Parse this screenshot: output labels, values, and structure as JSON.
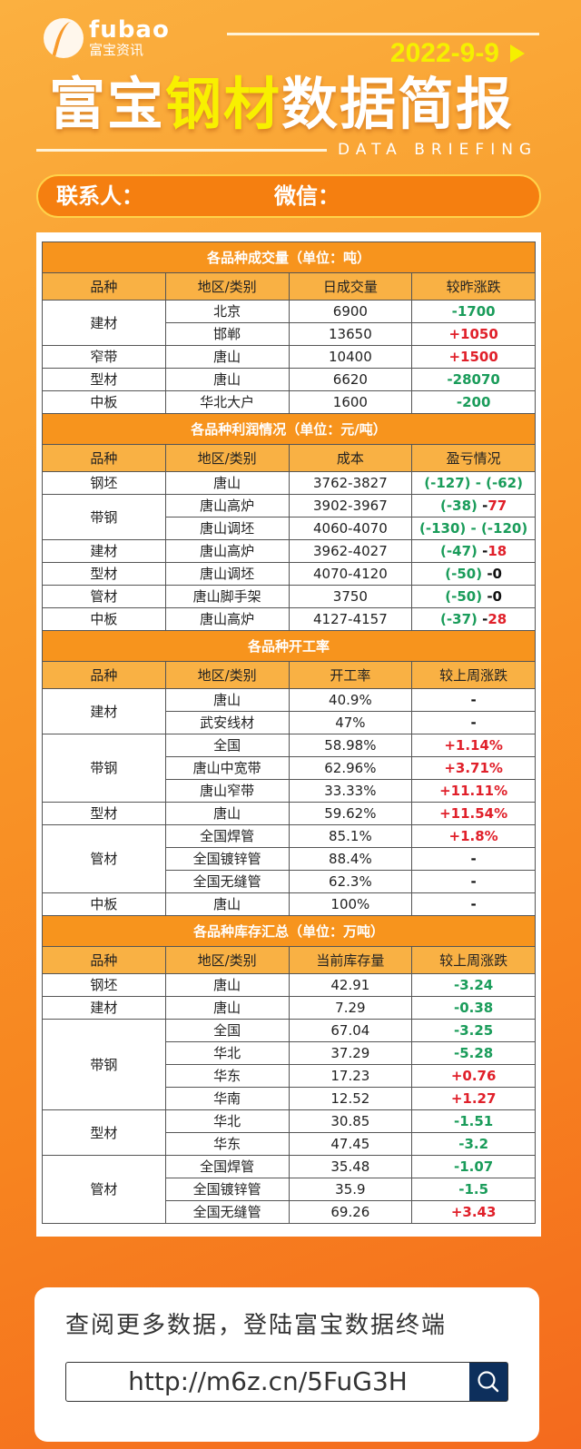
{
  "header": {
    "logo_en": "fubao",
    "logo_cn": "富宝资讯",
    "date": "2022-9-9",
    "title_a": "富宝",
    "title_hl": "钢材",
    "title_b": "数据简报",
    "subtitle": "DATA BRIEFING",
    "contact_label": "联系人：",
    "wechat_label": "微信："
  },
  "colors": {
    "green": "#1a9c5a",
    "red": "#e0202a",
    "title_row": "#f7941d",
    "header_row": "#f9b144"
  },
  "sections": [
    {
      "title": "各品种成交量（单位：吨）",
      "headers": [
        "品种",
        "地区/类别",
        "日成交量",
        "较昨涨跌"
      ],
      "groups": [
        {
          "name": "建材",
          "rows": [
            {
              "region": "北京",
              "value": "6900",
              "change": [
                {
                  "t": "-1700",
                  "c": "green"
                }
              ]
            },
            {
              "region": "邯郸",
              "value": "13650",
              "change": [
                {
                  "t": "+1050",
                  "c": "red"
                }
              ]
            }
          ]
        },
        {
          "name": "窄带",
          "rows": [
            {
              "region": "唐山",
              "value": "10400",
              "change": [
                {
                  "t": "+1500",
                  "c": "red"
                }
              ]
            }
          ]
        },
        {
          "name": "型材",
          "rows": [
            {
              "region": "唐山",
              "value": "6620",
              "change": [
                {
                  "t": "-28070",
                  "c": "green"
                }
              ]
            }
          ]
        },
        {
          "name": "中板",
          "rows": [
            {
              "region": "华北大户",
              "value": "1600",
              "change": [
                {
                  "t": "-200",
                  "c": "green"
                }
              ]
            }
          ]
        }
      ]
    },
    {
      "title": "各品种利润情况（单位：元/吨）",
      "headers": [
        "品种",
        "地区/类别",
        "成本",
        "盈亏情况"
      ],
      "groups": [
        {
          "name": "钢坯",
          "rows": [
            {
              "region": "唐山",
              "value": "3762-3827",
              "change": [
                {
                  "t": "(-127) - (-62)",
                  "c": "green"
                }
              ]
            }
          ]
        },
        {
          "name": "带钢",
          "rows": [
            {
              "region": "唐山高炉",
              "value": "3902-3967",
              "change": [
                {
                  "t": "(-38) ",
                  "c": "green"
                },
                {
                  "t": "-",
                  "c": "black"
                },
                {
                  "t": "77",
                  "c": "red"
                }
              ]
            },
            {
              "region": "唐山调坯",
              "value": "4060-4070",
              "change": [
                {
                  "t": "(-130) - (-120)",
                  "c": "green"
                }
              ]
            }
          ]
        },
        {
          "name": "建材",
          "rows": [
            {
              "region": "唐山高炉",
              "value": "3962-4027",
              "change": [
                {
                  "t": "(-47) ",
                  "c": "green"
                },
                {
                  "t": "-",
                  "c": "black"
                },
                {
                  "t": "18",
                  "c": "red"
                }
              ]
            }
          ]
        },
        {
          "name": "型材",
          "rows": [
            {
              "region": "唐山调坯",
              "value": "4070-4120",
              "change": [
                {
                  "t": "(-50) ",
                  "c": "green"
                },
                {
                  "t": "-0",
                  "c": "black"
                }
              ]
            }
          ]
        },
        {
          "name": "管材",
          "rows": [
            {
              "region": "唐山脚手架",
              "value": "3750",
              "change": [
                {
                  "t": "(-50) ",
                  "c": "green"
                },
                {
                  "t": "-0",
                  "c": "black"
                }
              ]
            }
          ]
        },
        {
          "name": "中板",
          "rows": [
            {
              "region": "唐山高炉",
              "value": "4127-4157",
              "change": [
                {
                  "t": "(-37) ",
                  "c": "green"
                },
                {
                  "t": "-",
                  "c": "black"
                },
                {
                  "t": "28",
                  "c": "red"
                }
              ]
            }
          ]
        }
      ]
    },
    {
      "title": "各品种开工率",
      "headers": [
        "品种",
        "地区/类别",
        "开工率",
        "较上周涨跌"
      ],
      "groups": [
        {
          "name": "建材",
          "rows": [
            {
              "region": "唐山",
              "value": "40.9%",
              "change": [
                {
                  "t": "-",
                  "c": "black"
                }
              ]
            },
            {
              "region": "武安线材",
              "value": "47%",
              "change": [
                {
                  "t": "-",
                  "c": "black"
                }
              ]
            }
          ]
        },
        {
          "name": "带钢",
          "rows": [
            {
              "region": "全国",
              "value": "58.98%",
              "change": [
                {
                  "t": "+1.14%",
                  "c": "red"
                }
              ]
            },
            {
              "region": "唐山中宽带",
              "value": "62.96%",
              "change": [
                {
                  "t": "+3.71%",
                  "c": "red"
                }
              ]
            },
            {
              "region": "唐山窄带",
              "value": "33.33%",
              "change": [
                {
                  "t": "+11.11%",
                  "c": "red"
                }
              ]
            }
          ]
        },
        {
          "name": "型材",
          "rows": [
            {
              "region": "唐山",
              "value": "59.62%",
              "change": [
                {
                  "t": "+11.54%",
                  "c": "red"
                }
              ]
            }
          ]
        },
        {
          "name": "管材",
          "rows": [
            {
              "region": "全国焊管",
              "value": "85.1%",
              "change": [
                {
                  "t": "+1.8%",
                  "c": "red"
                }
              ]
            },
            {
              "region": "全国镀锌管",
              "value": "88.4%",
              "change": [
                {
                  "t": "-",
                  "c": "black"
                }
              ]
            },
            {
              "region": "全国无缝管",
              "value": "62.3%",
              "change": [
                {
                  "t": "-",
                  "c": "black"
                }
              ]
            }
          ]
        },
        {
          "name": "中板",
          "rows": [
            {
              "region": "唐山",
              "value": "100%",
              "change": [
                {
                  "t": "-",
                  "c": "black"
                }
              ]
            }
          ]
        }
      ]
    },
    {
      "title": "各品种库存汇总（单位：万吨）",
      "headers": [
        "品种",
        "地区/类别",
        "当前库存量",
        "较上周涨跌"
      ],
      "groups": [
        {
          "name": "钢坯",
          "rows": [
            {
              "region": "唐山",
              "value": "42.91",
              "change": [
                {
                  "t": "-3.24",
                  "c": "green"
                }
              ]
            }
          ]
        },
        {
          "name": "建材",
          "rows": [
            {
              "region": "唐山",
              "value": "7.29",
              "change": [
                {
                  "t": "-0.38",
                  "c": "green"
                }
              ]
            }
          ]
        },
        {
          "name": "带钢",
          "rows": [
            {
              "region": "全国",
              "value": "67.04",
              "change": [
                {
                  "t": "-3.25",
                  "c": "green"
                }
              ]
            },
            {
              "region": "华北",
              "value": "37.29",
              "change": [
                {
                  "t": "-5.28",
                  "c": "green"
                }
              ]
            },
            {
              "region": "华东",
              "value": "17.23",
              "change": [
                {
                  "t": "+0.76",
                  "c": "red"
                }
              ]
            },
            {
              "region": "华南",
              "value": "12.52",
              "change": [
                {
                  "t": "+1.27",
                  "c": "red"
                }
              ]
            }
          ]
        },
        {
          "name": "型材",
          "rows": [
            {
              "region": "华北",
              "value": "30.85",
              "change": [
                {
                  "t": "-1.51",
                  "c": "green"
                }
              ]
            },
            {
              "region": "华东",
              "value": "47.45",
              "change": [
                {
                  "t": "-3.2",
                  "c": "green"
                }
              ]
            }
          ]
        },
        {
          "name": "管材",
          "rows": [
            {
              "region": "全国焊管",
              "value": "35.48",
              "change": [
                {
                  "t": "-1.07",
                  "c": "green"
                }
              ]
            },
            {
              "region": "全国镀锌管",
              "value": "35.9",
              "change": [
                {
                  "t": "-1.5",
                  "c": "green"
                }
              ]
            },
            {
              "region": "全国无缝管",
              "value": "69.26",
              "change": [
                {
                  "t": "+3.43",
                  "c": "red"
                }
              ]
            }
          ]
        }
      ]
    }
  ],
  "footer": {
    "cta": "查阅更多数据，登陆富宝数据终端",
    "url": "http://m6z.cn/5FuG3H",
    "search_icon": "search-icon"
  }
}
